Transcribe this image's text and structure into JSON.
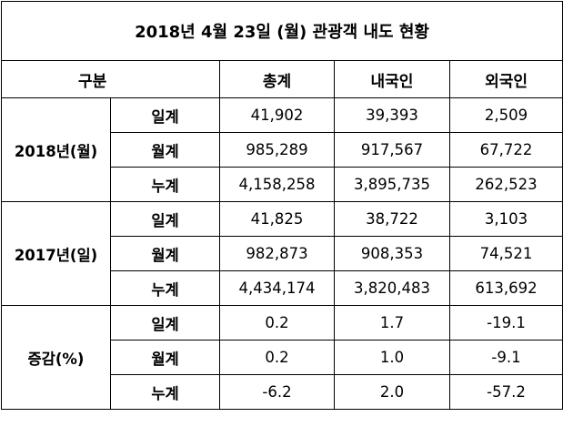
{
  "title": "2018년 4월 23일 (월) 관광객 내도 현황",
  "header": {
    "category": "구분",
    "columns": [
      "총계",
      "내국인",
      "외국인"
    ]
  },
  "groups": [
    {
      "label": "2018년(월)",
      "rows": [
        {
          "label": "일계",
          "values": [
            "41,902",
            "39,393",
            "2,509"
          ]
        },
        {
          "label": "월계",
          "values": [
            "985,289",
            "917,567",
            "67,722"
          ]
        },
        {
          "label": "누계",
          "values": [
            "4,158,258",
            "3,895,735",
            "262,523"
          ]
        }
      ]
    },
    {
      "label": "2017년(일)",
      "rows": [
        {
          "label": "일계",
          "values": [
            "41,825",
            "38,722",
            "3,103"
          ]
        },
        {
          "label": "월계",
          "values": [
            "982,873",
            "908,353",
            "74,521"
          ]
        },
        {
          "label": "누계",
          "values": [
            "4,434,174",
            "3,820,483",
            "613,692"
          ]
        }
      ]
    },
    {
      "label": "증감(%)",
      "rows": [
        {
          "label": "일계",
          "values": [
            "0.2",
            "1.7",
            "-19.1"
          ]
        },
        {
          "label": "월계",
          "values": [
            "0.2",
            "1.0",
            "-9.1"
          ]
        },
        {
          "label": "누계",
          "values": [
            "-6.2",
            "2.0",
            "-57.2"
          ]
        }
      ]
    }
  ]
}
